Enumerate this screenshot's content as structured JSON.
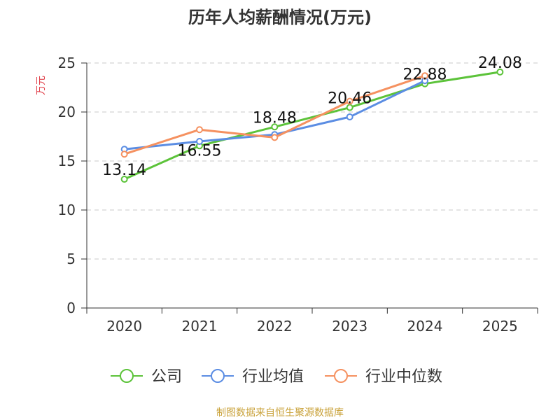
{
  "chart_data": {
    "type": "line",
    "title": "历年人均薪酬情况(万元)",
    "ylabel": "万元",
    "ylim": [
      0,
      25
    ],
    "yticks": [
      0,
      5,
      10,
      15,
      20,
      25
    ],
    "categories": [
      "2020",
      "2021",
      "2022",
      "2023",
      "2024",
      "2025"
    ],
    "grid": true,
    "legend_position": "bottom",
    "series": [
      {
        "name": "公司",
        "color": "#5cc33a",
        "values": [
          13.14,
          16.55,
          18.48,
          20.46,
          22.88,
          24.08
        ],
        "labels": [
          "13.14",
          "16.55",
          "18.48",
          "20.46",
          "22.88",
          "24.08"
        ]
      },
      {
        "name": "行业均值",
        "color": "#5b8de3",
        "values": [
          16.2,
          17.0,
          17.7,
          19.5,
          23.2,
          null
        ]
      },
      {
        "name": "行业中位数",
        "color": "#f59160",
        "values": [
          15.7,
          18.2,
          17.4,
          21.1,
          23.7,
          null
        ]
      }
    ],
    "source": "制图数据来自恒生聚源数据库"
  }
}
